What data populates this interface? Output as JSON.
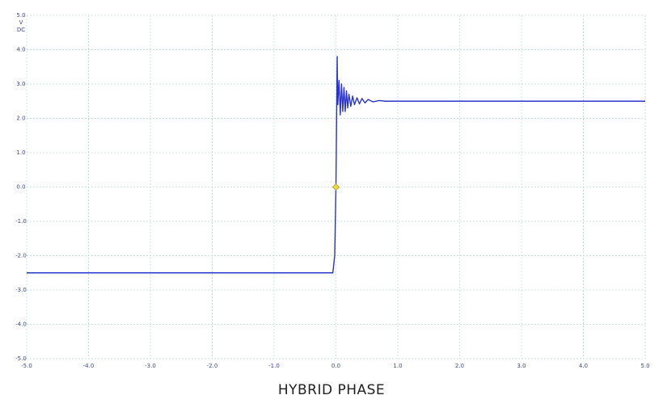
{
  "chart_data": {
    "type": "line",
    "title": "HYBRID PHASE",
    "y_unit_labels": [
      "V",
      "DC"
    ],
    "x": [
      -5,
      -0.5,
      -0.05,
      -0.02,
      0,
      0.02,
      0.03,
      0.05,
      0.07,
      0.09,
      0.11,
      0.13,
      0.15,
      0.17,
      0.19,
      0.21,
      0.24,
      0.27,
      0.3,
      0.34,
      0.38,
      0.42,
      0.47,
      0.52,
      0.6,
      0.7,
      0.8,
      1.0,
      5.0
    ],
    "values": [
      -2.5,
      -2.5,
      -2.5,
      -2.0,
      0,
      3.8,
      2.4,
      3.1,
      2.1,
      3.0,
      2.2,
      2.9,
      2.2,
      2.8,
      2.3,
      2.7,
      2.35,
      2.65,
      2.4,
      2.6,
      2.42,
      2.58,
      2.45,
      2.55,
      2.48,
      2.52,
      2.5,
      2.5,
      2.5
    ],
    "color": "#2b35c8",
    "markers": [
      {
        "x": 0,
        "y": 0,
        "color": "#e8d84a"
      }
    ],
    "xlim": [
      -5,
      5
    ],
    "ylim": [
      -5,
      5
    ],
    "xticks": [
      {
        "value": -5,
        "label": "-5.0"
      },
      {
        "value": -4,
        "label": "-4.0"
      },
      {
        "value": -3,
        "label": "-3.0"
      },
      {
        "value": -2,
        "label": "-2.0"
      },
      {
        "value": -1,
        "label": "-1.0"
      },
      {
        "value": 0,
        "label": "0.0"
      },
      {
        "value": 1,
        "label": "1.0"
      },
      {
        "value": 2,
        "label": "2.0"
      },
      {
        "value": 3,
        "label": "3.0"
      },
      {
        "value": 4,
        "label": "4.0"
      },
      {
        "value": 5,
        "label": "5.0"
      }
    ],
    "yticks": [
      {
        "value": -5,
        "label": "-5.0"
      },
      {
        "value": -4,
        "label": "-4.0"
      },
      {
        "value": -3,
        "label": "-3.0"
      },
      {
        "value": -2,
        "label": "-2.0"
      },
      {
        "value": -1,
        "label": "-1.0"
      },
      {
        "value": 0,
        "label": "0.0"
      },
      {
        "value": 1,
        "label": "1.0"
      },
      {
        "value": 2,
        "label": "2.0"
      },
      {
        "value": 3,
        "label": "3.0"
      },
      {
        "value": 4,
        "label": "4.0"
      },
      {
        "value": 5,
        "label": "5.0"
      }
    ],
    "grid": true
  }
}
